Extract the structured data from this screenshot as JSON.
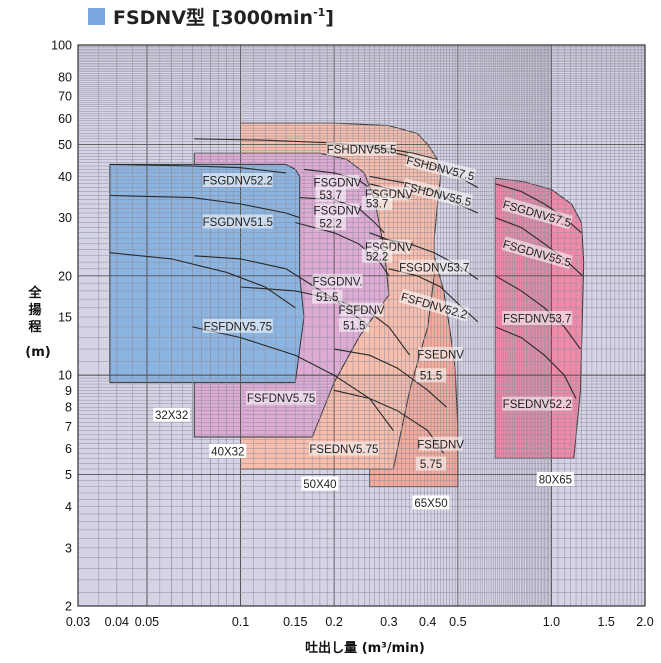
{
  "title": "FSDNV型 [3000min",
  "title_sup": "-1",
  "title_close": "]",
  "legend_color": "#7aa7e0",
  "chart_data": {
    "type": "area",
    "xlabel": "吐出し量 (m³/min)",
    "ylabel_chars": [
      "全",
      "揚",
      "程"
    ],
    "yunit": "(m)",
    "xscale": "log",
    "yscale": "log",
    "xlim": [
      0.03,
      2.0
    ],
    "ylim": [
      2,
      100
    ],
    "grid": true,
    "x_ticks": [
      {
        "v": 0.03,
        "label": "0.03"
      },
      {
        "v": 0.04,
        "label": "0.04"
      },
      {
        "v": 0.05,
        "label": "0.05"
      },
      {
        "v": 0.1,
        "label": "0.1"
      },
      {
        "v": 0.15,
        "label": "0.15"
      },
      {
        "v": 0.2,
        "label": "0.2"
      },
      {
        "v": 0.3,
        "label": "0.3"
      },
      {
        "v": 0.4,
        "label": "0.4"
      },
      {
        "v": 0.5,
        "label": "0.5"
      },
      {
        "v": 1.0,
        "label": "1.0"
      },
      {
        "v": 1.5,
        "label": "1.5"
      },
      {
        "v": 2.0,
        "label": "2.0"
      }
    ],
    "y_ticks": [
      {
        "v": 2,
        "label": "2"
      },
      {
        "v": 3,
        "label": "3"
      },
      {
        "v": 4,
        "label": "4"
      },
      {
        "v": 5,
        "label": "5"
      },
      {
        "v": 6,
        "label": "6"
      },
      {
        "v": 7,
        "label": "7"
      },
      {
        "v": 8,
        "label": "8"
      },
      {
        "v": 9,
        "label": "9"
      },
      {
        "v": 10,
        "label": "10"
      },
      {
        "v": 15,
        "label": "15"
      },
      {
        "v": 20,
        "label": "20"
      },
      {
        "v": 30,
        "label": "30"
      },
      {
        "v": 40,
        "label": "40"
      },
      {
        "v": 50,
        "label": "50"
      },
      {
        "v": 60,
        "label": "60"
      },
      {
        "v": 70,
        "label": "70"
      },
      {
        "v": 80,
        "label": "80"
      },
      {
        "v": 100,
        "label": "100"
      }
    ],
    "regions": [
      {
        "name": "80X65",
        "color": "#f08aa8",
        "label_at": [
          1.03,
          4.85
        ],
        "polygon": [
          [
            0.66,
            5.6
          ],
          [
            1.18,
            5.6
          ],
          [
            1.24,
            9
          ],
          [
            1.26,
            16
          ],
          [
            1.27,
            22
          ],
          [
            1.25,
            29
          ],
          [
            1.16,
            33
          ],
          [
            1.0,
            36.5
          ],
          [
            0.82,
            38.5
          ],
          [
            0.66,
            39.5
          ]
        ]
      },
      {
        "name": "65X50",
        "color": "#f7aa9a",
        "label_at": [
          0.41,
          4.12
        ],
        "polygon": [
          [
            0.26,
            4.6
          ],
          [
            0.5,
            4.6
          ],
          [
            0.5,
            7
          ],
          [
            0.49,
            10.5
          ],
          [
            0.47,
            14
          ],
          [
            0.45,
            18
          ],
          [
            0.41,
            25
          ],
          [
            0.35,
            34
          ],
          [
            0.26,
            38
          ]
        ]
      },
      {
        "name": "50X40",
        "color": "#f9bdab",
        "label_at": [
          0.18,
          4.7
        ],
        "polygon": [
          [
            0.1,
            5.2
          ],
          [
            0.31,
            5.2
          ],
          [
            0.35,
            9
          ],
          [
            0.4,
            14
          ],
          [
            0.42,
            20
          ],
          [
            0.42,
            26
          ],
          [
            0.43,
            33
          ],
          [
            0.44,
            40
          ],
          [
            0.43,
            45
          ],
          [
            0.4,
            50
          ],
          [
            0.37,
            54
          ],
          [
            0.3,
            57
          ],
          [
            0.2,
            58
          ],
          [
            0.1,
            58
          ]
        ]
      },
      {
        "name": "40X32",
        "color": "#ddabd4",
        "label_at": [
          0.079,
          5.9
        ],
        "polygon": [
          [
            0.071,
            6.5
          ],
          [
            0.17,
            6.5
          ],
          [
            0.2,
            9.5
          ],
          [
            0.24,
            13
          ],
          [
            0.3,
            17.5
          ],
          [
            0.29,
            24
          ],
          [
            0.27,
            34
          ],
          [
            0.25,
            41
          ],
          [
            0.22,
            45
          ],
          [
            0.18,
            47
          ],
          [
            0.071,
            47
          ]
        ]
      },
      {
        "name": "32X32",
        "color": "#8bb4e1",
        "label_at": [
          0.045,
          7.6
        ],
        "polygon": [
          [
            0.038,
            9.5
          ],
          [
            0.15,
            9.5
          ],
          [
            0.155,
            12
          ],
          [
            0.16,
            15
          ],
          [
            0.155,
            20
          ],
          [
            0.155,
            30
          ],
          [
            0.155,
            40
          ],
          [
            0.15,
            42
          ],
          [
            0.14,
            43.5
          ],
          [
            0.038,
            43.5
          ]
        ]
      }
    ],
    "curves": [
      {
        "name": "FSHDNV55.5",
        "label_at": [
          0.25,
          48
        ],
        "points": [
          [
            0.071,
            52
          ],
          [
            0.12,
            51.5
          ],
          [
            0.2,
            50.5
          ],
          [
            0.28,
            49
          ],
          [
            0.36,
            47
          ],
          [
            0.43,
            45
          ]
        ]
      },
      {
        "name": "FSHDNV57.5",
        "label_at": [
          0.42,
          42
        ],
        "points": [
          [
            0.26,
            49
          ],
          [
            0.35,
            46
          ],
          [
            0.42,
            43
          ],
          [
            0.5,
            40
          ],
          [
            0.58,
            37
          ]
        ]
      },
      {
        "name": "FSHDNV55.5",
        "label_at": [
          0.42,
          35
        ],
        "points": [
          [
            0.26,
            40
          ],
          [
            0.35,
            38
          ],
          [
            0.42,
            36
          ],
          [
            0.5,
            33
          ],
          [
            0.58,
            31
          ]
        ]
      },
      {
        "name": "FSGDNV57.5",
        "label_at": [
          0.98,
          31
        ],
        "points": [
          [
            0.66,
            38
          ],
          [
            0.8,
            36
          ],
          [
            0.95,
            33
          ],
          [
            1.1,
            30
          ],
          [
            1.25,
            27
          ]
        ]
      },
      {
        "name": "FSGDNV55.5",
        "label_at": [
          0.98,
          23.5
        ],
        "points": [
          [
            0.66,
            30
          ],
          [
            0.8,
            28
          ],
          [
            0.95,
            25
          ],
          [
            1.1,
            22.5
          ],
          [
            1.26,
            20
          ]
        ]
      },
      {
        "name": "FSGDNV53.7",
        "label_at": [
          0.4,
          21.5
        ],
        "points": [
          [
            0.28,
            26
          ],
          [
            0.35,
            25
          ],
          [
            0.42,
            23.5
          ],
          [
            0.5,
            21.5
          ],
          [
            0.58,
            19.5
          ]
        ]
      },
      {
        "name": "FSFDNV52.2",
        "label_at": [
          0.4,
          16.5
        ],
        "points": [
          [
            0.3,
            21
          ],
          [
            0.37,
            20
          ],
          [
            0.44,
            18.5
          ],
          [
            0.5,
            16.5
          ],
          [
            0.58,
            14.5
          ]
        ]
      },
      {
        "name": "FSFDNV53.7",
        "label_at": [
          0.9,
          14.7
        ],
        "points": [
          [
            0.66,
            20
          ],
          [
            0.8,
            18
          ],
          [
            0.95,
            16
          ],
          [
            1.1,
            14
          ],
          [
            1.24,
            12
          ]
        ]
      },
      {
        "name": "FSEDNV52.2",
        "label_at": [
          0.9,
          8.2
        ],
        "points": [
          [
            0.66,
            14
          ],
          [
            0.8,
            13
          ],
          [
            0.95,
            11.5
          ],
          [
            1.1,
            10
          ],
          [
            1.2,
            8.5
          ]
        ]
      },
      {
        "name": "FSGDNV52.2",
        "label_at": [
          0.1,
          39
        ],
        "points": [
          [
            0.038,
            43.5
          ],
          [
            0.07,
            43
          ],
          [
            0.1,
            42.5
          ],
          [
            0.14,
            41
          ]
        ]
      },
      {
        "name": "FSGDNV51.5",
        "label_at": [
          0.1,
          29
        ],
        "points": [
          [
            0.038,
            35
          ],
          [
            0.07,
            34.5
          ],
          [
            0.1,
            33
          ],
          [
            0.14,
            31
          ],
          [
            0.155,
            30
          ]
        ]
      },
      {
        "name": "FSFDNV5.75",
        "label_at": [
          0.1,
          14.1
        ],
        "points": [
          [
            0.038,
            23.5
          ],
          [
            0.06,
            22.5
          ],
          [
            0.09,
            20.5
          ],
          [
            0.12,
            18.5
          ],
          [
            0.15,
            16
          ]
        ]
      },
      {
        "name": "FSGDNV53.7",
        "label_at": [
          0.2,
          38
        ],
        "points": [
          [
            0.16,
            42
          ],
          [
            0.2,
            41
          ],
          [
            0.24,
            39
          ],
          [
            0.27,
            36
          ],
          [
            0.28,
            34
          ]
        ]
      },
      {
        "name": "FSGDNV52.2",
        "label_at": [
          0.2,
          31
        ],
        "points": [
          [
            0.155,
            34.5
          ],
          [
            0.2,
            34
          ],
          [
            0.24,
            32
          ],
          [
            0.27,
            29
          ],
          [
            0.29,
            27
          ]
        ]
      },
      {
        "name": "FSGDNV51.5",
        "label_at": [
          0.18,
          18
        ],
        "points": [
          [
            0.15,
            29
          ],
          [
            0.2,
            27
          ],
          [
            0.24,
            25
          ],
          [
            0.28,
            22
          ],
          [
            0.3,
            20
          ]
        ]
      },
      {
        "name": "FSFDNV5.75",
        "label_at": [
          0.125,
          8.7
        ],
        "points": [
          [
            0.071,
            23
          ],
          [
            0.1,
            22.5
          ],
          [
            0.14,
            21
          ],
          [
            0.2,
            17
          ],
          [
            0.26,
            14
          ]
        ]
      },
      {
        "name": "FSGDNV53.7",
        "label_at": [
          0.29,
          35
        ],
        "points": [
          [
            0.26,
            38
          ],
          [
            0.29,
            37
          ],
          [
            0.32,
            36
          ],
          [
            0.35,
            34
          ]
        ]
      },
      {
        "name": "FSGDNV52.2",
        "label_at": [
          0.29,
          24.5
        ],
        "points": [
          [
            0.26,
            27
          ],
          [
            0.29,
            26
          ],
          [
            0.32,
            25
          ],
          [
            0.34,
            23.5
          ]
        ]
      },
      {
        "name": "FSFDNV51.5",
        "label_at": [
          0.26,
          15.5
        ],
        "points": [
          [
            0.1,
            18.5
          ],
          [
            0.15,
            18
          ],
          [
            0.2,
            17
          ],
          [
            0.26,
            15.5
          ],
          [
            0.3,
            14
          ],
          [
            0.35,
            11.5
          ]
        ]
      },
      {
        "name": "FSEDNV5.75",
        "label_at": [
          0.21,
          6.2
        ],
        "points": [
          [
            0.07,
            14
          ],
          [
            0.1,
            13
          ],
          [
            0.15,
            11.5
          ],
          [
            0.2,
            10
          ],
          [
            0.26,
            8.5
          ],
          [
            0.31,
            6.8
          ]
        ]
      },
      {
        "name": "FSEDNV51.5",
        "label_at": [
          0.44,
          10.6
        ],
        "points": [
          [
            0.2,
            12
          ],
          [
            0.26,
            11.5
          ],
          [
            0.32,
            10.5
          ],
          [
            0.4,
            9
          ],
          [
            0.46,
            8
          ]
        ]
      },
      {
        "name": "FSEDNV5.75",
        "label_at": [
          0.41,
          6.0
        ],
        "points": [
          [
            0.2,
            9
          ],
          [
            0.26,
            8.5
          ],
          [
            0.32,
            7.8
          ],
          [
            0.4,
            6.8
          ],
          [
            0.45,
            5.8
          ]
        ]
      }
    ],
    "labels": [
      {
        "text": "FSHDNV55.5",
        "x": 0.245,
        "y": 48.5,
        "rot": 0
      },
      {
        "text": "FSHDNV57.5",
        "x": 0.44,
        "y": 42.5,
        "rot": 14
      },
      {
        "text": "FSHDNV55.5",
        "x": 0.43,
        "y": 35.5,
        "rot": 14
      },
      {
        "text": "FSGDNV57.5",
        "x": 0.9,
        "y": 31,
        "rot": 16
      },
      {
        "text": "FSGDNV55.5",
        "x": 0.9,
        "y": 23.5,
        "rot": 16
      },
      {
        "text": "FSGDNV53.7",
        "x": 0.42,
        "y": 21.3,
        "rot": 0
      },
      {
        "text": "FSFDNV52.2",
        "x": 0.42,
        "y": 16.3,
        "rot": 16
      },
      {
        "text": "FSFDNV53.7",
        "x": 0.9,
        "y": 14.9,
        "rot": 0
      },
      {
        "text": "FSEDNV52.2",
        "x": 0.9,
        "y": 8.2,
        "rot": 0
      },
      {
        "text": "FSEDNV",
        "x": 0.44,
        "y": 11.6,
        "rot": 0
      },
      {
        "text": "51.5",
        "x": 0.41,
        "y": 10.0,
        "rot": 0
      },
      {
        "text": "FSEDNV",
        "x": 0.44,
        "y": 6.2,
        "rot": 0
      },
      {
        "text": "5.75",
        "x": 0.41,
        "y": 5.4,
        "rot": 0
      },
      {
        "text": "FSGDNV52.2",
        "x": 0.098,
        "y": 39,
        "rot": 0
      },
      {
        "text": "FSGDNV51.5",
        "x": 0.098,
        "y": 29.2,
        "rot": 0
      },
      {
        "text": "FSFDNV5.75",
        "x": 0.098,
        "y": 14.1,
        "rot": 0
      },
      {
        "text": "FSGDNV",
        "x": 0.205,
        "y": 38.5,
        "rot": 0
      },
      {
        "text": "53.7",
        "x": 0.195,
        "y": 35.2,
        "rot": 0
      },
      {
        "text": "FSGDNV",
        "x": 0.205,
        "y": 31.6,
        "rot": 0
      },
      {
        "text": "52.2",
        "x": 0.195,
        "y": 28.9,
        "rot": 0
      },
      {
        "text": "FSGDNV.",
        "x": 0.205,
        "y": 19.3,
        "rot": 0
      },
      {
        "text": "51.5",
        "x": 0.19,
        "y": 17.3,
        "rot": 0
      },
      {
        "text": "FSFDNV5.75",
        "x": 0.135,
        "y": 8.55,
        "rot": 0
      },
      {
        "text": "FSGDNV",
        "x": 0.3,
        "y": 35.5,
        "rot": 0
      },
      {
        "text": "53.7",
        "x": 0.275,
        "y": 33.2,
        "rot": 0
      },
      {
        "text": "FSGDNV",
        "x": 0.3,
        "y": 24.5,
        "rot": 0
      },
      {
        "text": "52.2",
        "x": 0.275,
        "y": 23.0,
        "rot": 0
      },
      {
        "text": "FSFDNV",
        "x": 0.245,
        "y": 15.8,
        "rot": 0
      },
      {
        "text": "51.5",
        "x": 0.232,
        "y": 14.2,
        "rot": 0
      },
      {
        "text": "FSEDNV5.75",
        "x": 0.215,
        "y": 6.0,
        "rot": 0
      },
      {
        "text": "32X32",
        "x": 0.06,
        "y": 7.6,
        "rot": 0
      },
      {
        "text": "40X32",
        "x": 0.091,
        "y": 5.9,
        "rot": 0
      },
      {
        "text": "50X40",
        "x": 0.18,
        "y": 4.7,
        "rot": 0
      },
      {
        "text": "65X50",
        "x": 0.41,
        "y": 4.12,
        "rot": 0
      },
      {
        "text": "80X65",
        "x": 1.03,
        "y": 4.85,
        "rot": 0
      }
    ]
  }
}
